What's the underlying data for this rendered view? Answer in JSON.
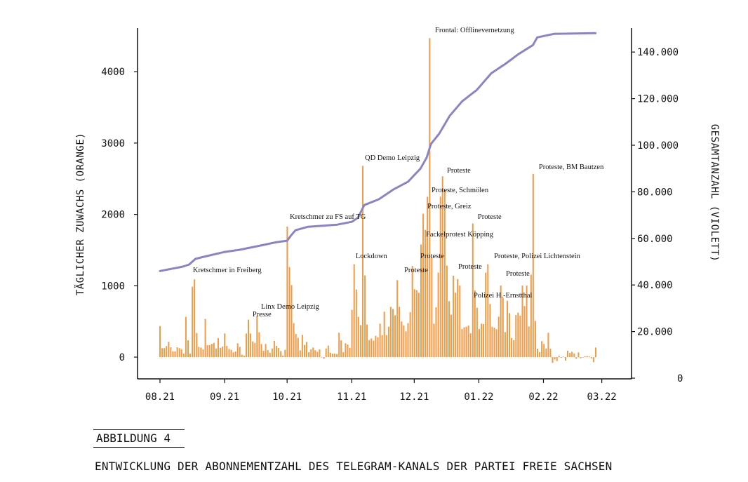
{
  "colors": {
    "bars": "#f29a45",
    "line": "#8b84c4",
    "axis": "#111111"
  },
  "figure": {
    "label": "ABBILDUNG 4",
    "title": "ENTWICKLUNG DER ABONNEMENTZAHL DES TELEGRAM-KANALS DER PARTEI FREIE SACHSEN"
  },
  "chart_data": {
    "type": "bar+line",
    "x_ticks": [
      "08.21",
      "09.21",
      "10.21",
      "11.21",
      "12.21",
      "01.22",
      "02.22",
      "03.22"
    ],
    "x_tick_days": [
      0,
      31,
      61,
      92,
      122,
      153,
      184,
      212
    ],
    "ylabel_left": "TÄGLICHER ZUWACHS (ORANGE)",
    "ylabel_right": "GESAMTANZAHL (VIOLETT)",
    "ylim_left": [
      -300,
      4650
    ],
    "yticks_left": [
      0,
      1000,
      2000,
      3000,
      4000
    ],
    "ytick_labels_left": [
      "0",
      "1000",
      "2000",
      "3000",
      "4000"
    ],
    "ylim_right": [
      0,
      150000
    ],
    "yticks_right": [
      0,
      20000,
      40000,
      60000,
      80000,
      100000,
      120000,
      140000
    ],
    "ytick_labels_right": [
      "0",
      "20.000",
      "40.000",
      "60.000",
      "80.000",
      "100.000",
      "120.000",
      "140.000"
    ],
    "grid": false,
    "series": [
      {
        "name": "Täglicher Zuwachs",
        "type": "bar",
        "axis": "left",
        "values": [
          436,
          125,
          125,
          154,
          213,
          138,
          82,
          82,
          138,
          125,
          108,
          49,
          564,
          236,
          49,
          987,
          1089,
          338,
          144,
          134,
          108,
          535,
          167,
          167,
          187,
          200,
          121,
          266,
          131,
          148,
          331,
          157,
          115,
          102,
          66,
          79,
          194,
          144,
          33,
          23,
          331,
          525,
          331,
          220,
          200,
          581,
          348,
          184,
          89,
          184,
          98,
          62,
          121,
          226,
          157,
          128,
          85,
          23,
          102,
          1830,
          1262,
          1010,
          476,
          325,
          269,
          95,
          312,
          171,
          213,
          69,
          108,
          134,
          95,
          75,
          108,
          0,
          -23,
          121,
          161,
          62,
          49,
          49,
          43,
          341,
          236,
          69,
          194,
          177,
          131,
          663,
          1302,
          948,
          564,
          449,
          2680,
          1145,
          456,
          239,
          262,
          230,
          298,
          279,
          469,
          308,
          636,
          308,
          426,
          705,
          676,
          587,
          1079,
          705,
          499,
          443,
          361,
          476,
          630,
          1279,
          951,
          938,
          902,
          1578,
          2010,
          1784,
          2247,
          4470,
          1394,
          469,
          699,
          1184,
          2250,
          2535,
          2339,
          1282,
          784,
          594,
          1141,
          902,
          1092,
          1004,
          394,
          417,
          426,
          443,
          335,
          1873,
          935,
          692,
          394,
          469,
          462,
          1184,
          1302,
          745,
          426,
          413,
          390,
          567,
          1004,
          830,
          351,
          790,
          617,
          266,
          239,
          590,
          623,
          580,
          1004,
          715,
          1004,
          430,
          1155,
          2568,
          508,
          118,
          69,
          223,
          184,
          121,
          341,
          118,
          -80,
          -33,
          -56,
          23,
          -10,
          7,
          -49,
          89,
          59,
          75,
          52,
          -23,
          66,
          -16,
          -3,
          13,
          16,
          10,
          -16,
          -72,
          134
        ]
      },
      {
        "name": "Gesamtanzahl",
        "type": "line",
        "axis": "right",
        "points": [
          [
            0,
            46000
          ],
          [
            11,
            47900
          ],
          [
            14,
            48800
          ],
          [
            17,
            51200
          ],
          [
            21,
            52100
          ],
          [
            31,
            54200
          ],
          [
            38,
            55100
          ],
          [
            48,
            56900
          ],
          [
            56,
            58400
          ],
          [
            61,
            59000
          ],
          [
            63,
            61400
          ],
          [
            65,
            63500
          ],
          [
            71,
            65000
          ],
          [
            85,
            65900
          ],
          [
            92,
            67100
          ],
          [
            95,
            68900
          ],
          [
            98,
            74300
          ],
          [
            105,
            76800
          ],
          [
            112,
            81000
          ],
          [
            119,
            84300
          ],
          [
            125,
            90000
          ],
          [
            128,
            94800
          ],
          [
            130,
            100500
          ],
          [
            134,
            105000
          ],
          [
            139,
            112600
          ],
          [
            145,
            118900
          ],
          [
            152,
            123700
          ],
          [
            159,
            130900
          ],
          [
            166,
            135100
          ],
          [
            172,
            139100
          ],
          [
            179,
            143000
          ],
          [
            181,
            146300
          ],
          [
            189,
            147800
          ],
          [
            209,
            148100
          ]
        ]
      }
    ],
    "annotations": [
      {
        "text": "Kretschmer in Freiberg",
        "day": 15.8,
        "value": 1190
      },
      {
        "text": "Presse",
        "day": 44.4,
        "value": 570
      },
      {
        "text": "Linx Demo Leipzig",
        "day": 48.5,
        "value": 680
      },
      {
        "text": "Kretschmer zu FS auf TG",
        "day": 62.3,
        "value": 1937
      },
      {
        "text": "Lockdown",
        "day": 93.9,
        "value": 1386
      },
      {
        "text": "QD Demo Leipzig",
        "day": 98.3,
        "value": 2763
      },
      {
        "text": "Frontal: Offlinevernetzung",
        "day": 132,
        "value": 4553
      },
      {
        "text": "Proteste",
        "day": 137.7,
        "value": 2586
      },
      {
        "text": "Proteste, Schmölen",
        "day": 130.3,
        "value": 2311
      },
      {
        "text": "Proteste, Greiz",
        "day": 128.3,
        "value": 2085
      },
      {
        "text": "Proteste",
        "day": 152.5,
        "value": 1937
      },
      {
        "text": "Fackelprotest Köpping",
        "day": 127.6,
        "value": 1691
      },
      {
        "text": "Proteste, Polizei Lichtenstein",
        "day": 160.3,
        "value": 1386
      },
      {
        "text": "Proteste",
        "day": 124.9,
        "value": 1386
      },
      {
        "text": "Proteste",
        "day": 117.2,
        "value": 1190
      },
      {
        "text": "Proteste",
        "day": 143.1,
        "value": 1239
      },
      {
        "text": "Proteste",
        "day": 166,
        "value": 1140
      },
      {
        "text": "Polizei H.-Ernstthal",
        "day": 150.5,
        "value": 836
      },
      {
        "text": "Proteste, BM Bautzen",
        "day": 181.8,
        "value": 2635
      }
    ]
  }
}
